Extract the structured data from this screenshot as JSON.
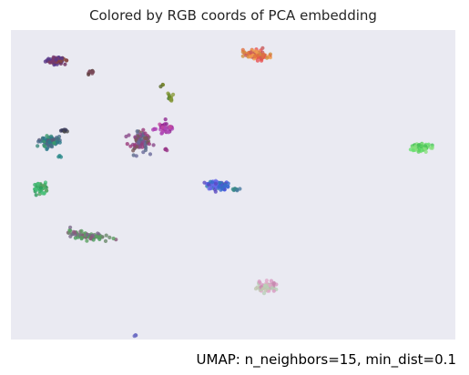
{
  "chart_data": {
    "type": "scatter",
    "title": "Colored by RGB coords of PCA embedding",
    "annotation": "UMAP: n_neighbors=15, min_dist=0.1",
    "xlabel": "",
    "ylabel": "",
    "axes_visible": false,
    "grid": false,
    "legend": "none",
    "background_color": "#eaeaf2",
    "xlim": [
      0,
      100
    ],
    "ylim": [
      0,
      100
    ],
    "clusters": [
      {
        "center": [
          10.0,
          90.1
        ],
        "spread": [
          1.8,
          0.9
        ],
        "count": 80,
        "colors": [
          "#7a3a6a",
          "#5a3a8a",
          "#8a4a3a",
          "#6a2a5a"
        ]
      },
      {
        "center": [
          18.0,
          86.5
        ],
        "spread": [
          1.0,
          0.6
        ],
        "count": 10,
        "colors": [
          "#7a4a5a",
          "#5a3a3a"
        ]
      },
      {
        "center": [
          34.0,
          82.0
        ],
        "spread": [
          0.3,
          0.3
        ],
        "count": 3,
        "colors": [
          "#7a8a2a",
          "#5a6a2a"
        ]
      },
      {
        "center": [
          35.8,
          78.0
        ],
        "spread": [
          0.5,
          1.0
        ],
        "count": 12,
        "colors": [
          "#6a8a2a",
          "#8a9a3a",
          "#4a7a3a"
        ]
      },
      {
        "center": [
          55.3,
          92.0
        ],
        "spread": [
          2.2,
          1.3
        ],
        "count": 100,
        "colors": [
          "#e07040",
          "#e85050",
          "#d09040",
          "#f0a050",
          "#c85a5a"
        ]
      },
      {
        "center": [
          8.5,
          64.0
        ],
        "spread": [
          1.8,
          1.6
        ],
        "count": 90,
        "colors": [
          "#3a8a7a",
          "#2a7a8a",
          "#4a6a8a",
          "#3a9a6a",
          "#5a5a7a"
        ]
      },
      {
        "center": [
          12.0,
          67.5
        ],
        "spread": [
          0.8,
          0.4
        ],
        "count": 8,
        "colors": [
          "#3a3a5a",
          "#4a4a4a"
        ]
      },
      {
        "center": [
          11.0,
          59.0
        ],
        "spread": [
          0.3,
          0.3
        ],
        "count": 3,
        "colors": [
          "#2a8a8a"
        ]
      },
      {
        "center": [
          29.0,
          64.0
        ],
        "spread": [
          2.2,
          2.6
        ],
        "count": 90,
        "colors": [
          "#8a4a8a",
          "#6a6a9a",
          "#9a3a7a",
          "#7a5a5a",
          "#5a6a8a"
        ]
      },
      {
        "center": [
          34.5,
          68.5
        ],
        "spread": [
          1.8,
          1.4
        ],
        "count": 45,
        "colors": [
          "#a83aa8",
          "#c04aa0",
          "#902a90",
          "#b04ab8"
        ]
      },
      {
        "center": [
          34.8,
          61.5
        ],
        "spread": [
          0.3,
          0.6
        ],
        "count": 4,
        "colors": [
          "#9a3a8a"
        ]
      },
      {
        "center": [
          92.0,
          62.0
        ],
        "spread": [
          2.0,
          1.1
        ],
        "count": 80,
        "colors": [
          "#6ae070",
          "#5ad060",
          "#8ae080",
          "#4ac05a"
        ]
      },
      {
        "center": [
          6.5,
          49.3
        ],
        "spread": [
          1.2,
          1.3
        ],
        "count": 60,
        "colors": [
          "#3ab06a",
          "#4ac07a",
          "#2a9a5a",
          "#5aa060"
        ]
      },
      {
        "center": [
          46.5,
          49.8
        ],
        "spread": [
          2.2,
          1.2
        ],
        "count": 80,
        "colors": [
          "#4a5ae0",
          "#3a6ad0",
          "#5a4ac0",
          "#2a7ab0",
          "#6a6ae8"
        ]
      },
      {
        "center": [
          50.5,
          48.5
        ],
        "spread": [
          0.8,
          0.3
        ],
        "count": 10,
        "colors": [
          "#3a8a8a",
          "#4a7aa0"
        ]
      },
      {
        "center": [
          17.5,
          33.5
        ],
        "spread": [
          4.5,
          0.9
        ],
        "tilt": -0.2,
        "count": 80,
        "colors": [
          "#5aa060",
          "#7a6a8a",
          "#4a9a5a",
          "#8a5a7a",
          "#6a8a6a"
        ]
      },
      {
        "center": [
          57.5,
          17.0
        ],
        "spread": [
          1.7,
          1.3
        ],
        "count": 80,
        "colors": [
          "#d898c0",
          "#c0c8b0",
          "#e0a8c8",
          "#b8d0b8",
          "#c888b0"
        ]
      },
      {
        "center": [
          28.0,
          1.3
        ],
        "spread": [
          0.4,
          0.2
        ],
        "count": 5,
        "colors": [
          "#6a6ac0",
          "#7a7ad0"
        ]
      }
    ]
  }
}
